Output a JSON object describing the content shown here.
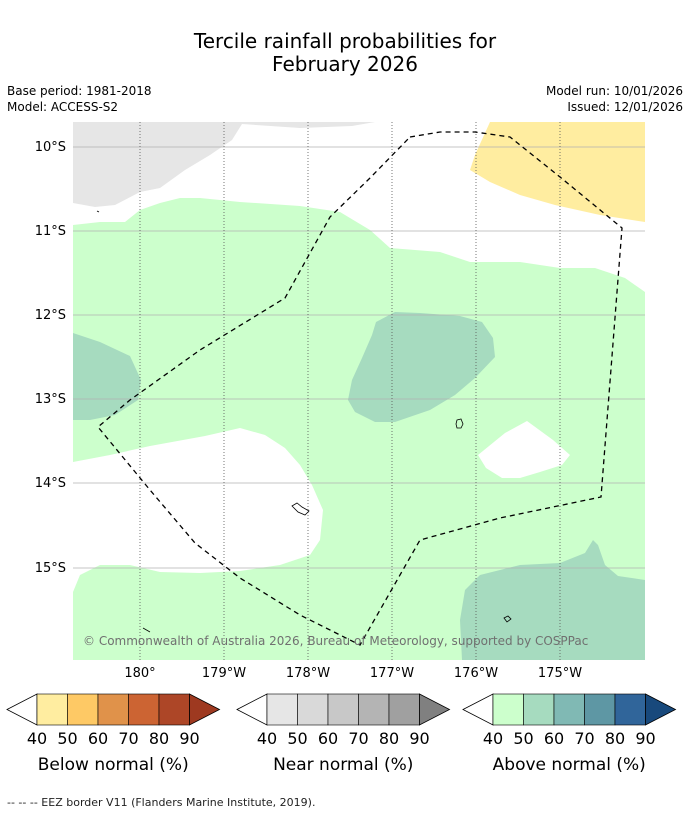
{
  "title_line1": "Tercile rainfall probabilities for",
  "title_line2": "February 2026",
  "meta": {
    "base_period": "Base period: 1981-2018",
    "model": "Model: ACCESS-S2",
    "model_run": "Model run: 10/01/2026",
    "issued": "Issued: 12/01/2026"
  },
  "axes": {
    "lat_labels": [
      "10°S",
      "11°S",
      "12°S",
      "13°S",
      "14°S",
      "15°S"
    ],
    "lon_labels": [
      "180°",
      "179°W",
      "178°W",
      "177°W",
      "176°W",
      "175°W"
    ]
  },
  "copyright": "© Commonwealth of Australia 2026, Bureau of Meteorology, supported by COSPPac",
  "colorbars": [
    {
      "name": "below",
      "title": "Below normal (%)",
      "ticks": [
        "40",
        "50",
        "60",
        "70",
        "80",
        "90"
      ],
      "colors": [
        "#ffffff",
        "#ffeda0",
        "#fec965",
        "#e0924a",
        "#cc6433",
        "#ad4627",
        "#9e3920"
      ]
    },
    {
      "name": "near",
      "title": "Near normal (%)",
      "ticks": [
        "40",
        "50",
        "60",
        "70",
        "80",
        "90"
      ],
      "colors": [
        "#ffffff",
        "#e6e6e6",
        "#d9d9d9",
        "#c8c8c8",
        "#b4b4b4",
        "#a0a0a0",
        "#808080"
      ]
    },
    {
      "name": "above",
      "title": "Above normal (%)",
      "ticks": [
        "40",
        "50",
        "60",
        "70",
        "80",
        "90"
      ],
      "colors": [
        "#ffffff",
        "#ccffcc",
        "#a6dbbf",
        "#80b9b4",
        "#5e97a4",
        "#30659a",
        "#18497c"
      ]
    }
  ],
  "footer": "--  --  -- EEZ border V11 (Flanders Marine Institute, 2019)."
}
